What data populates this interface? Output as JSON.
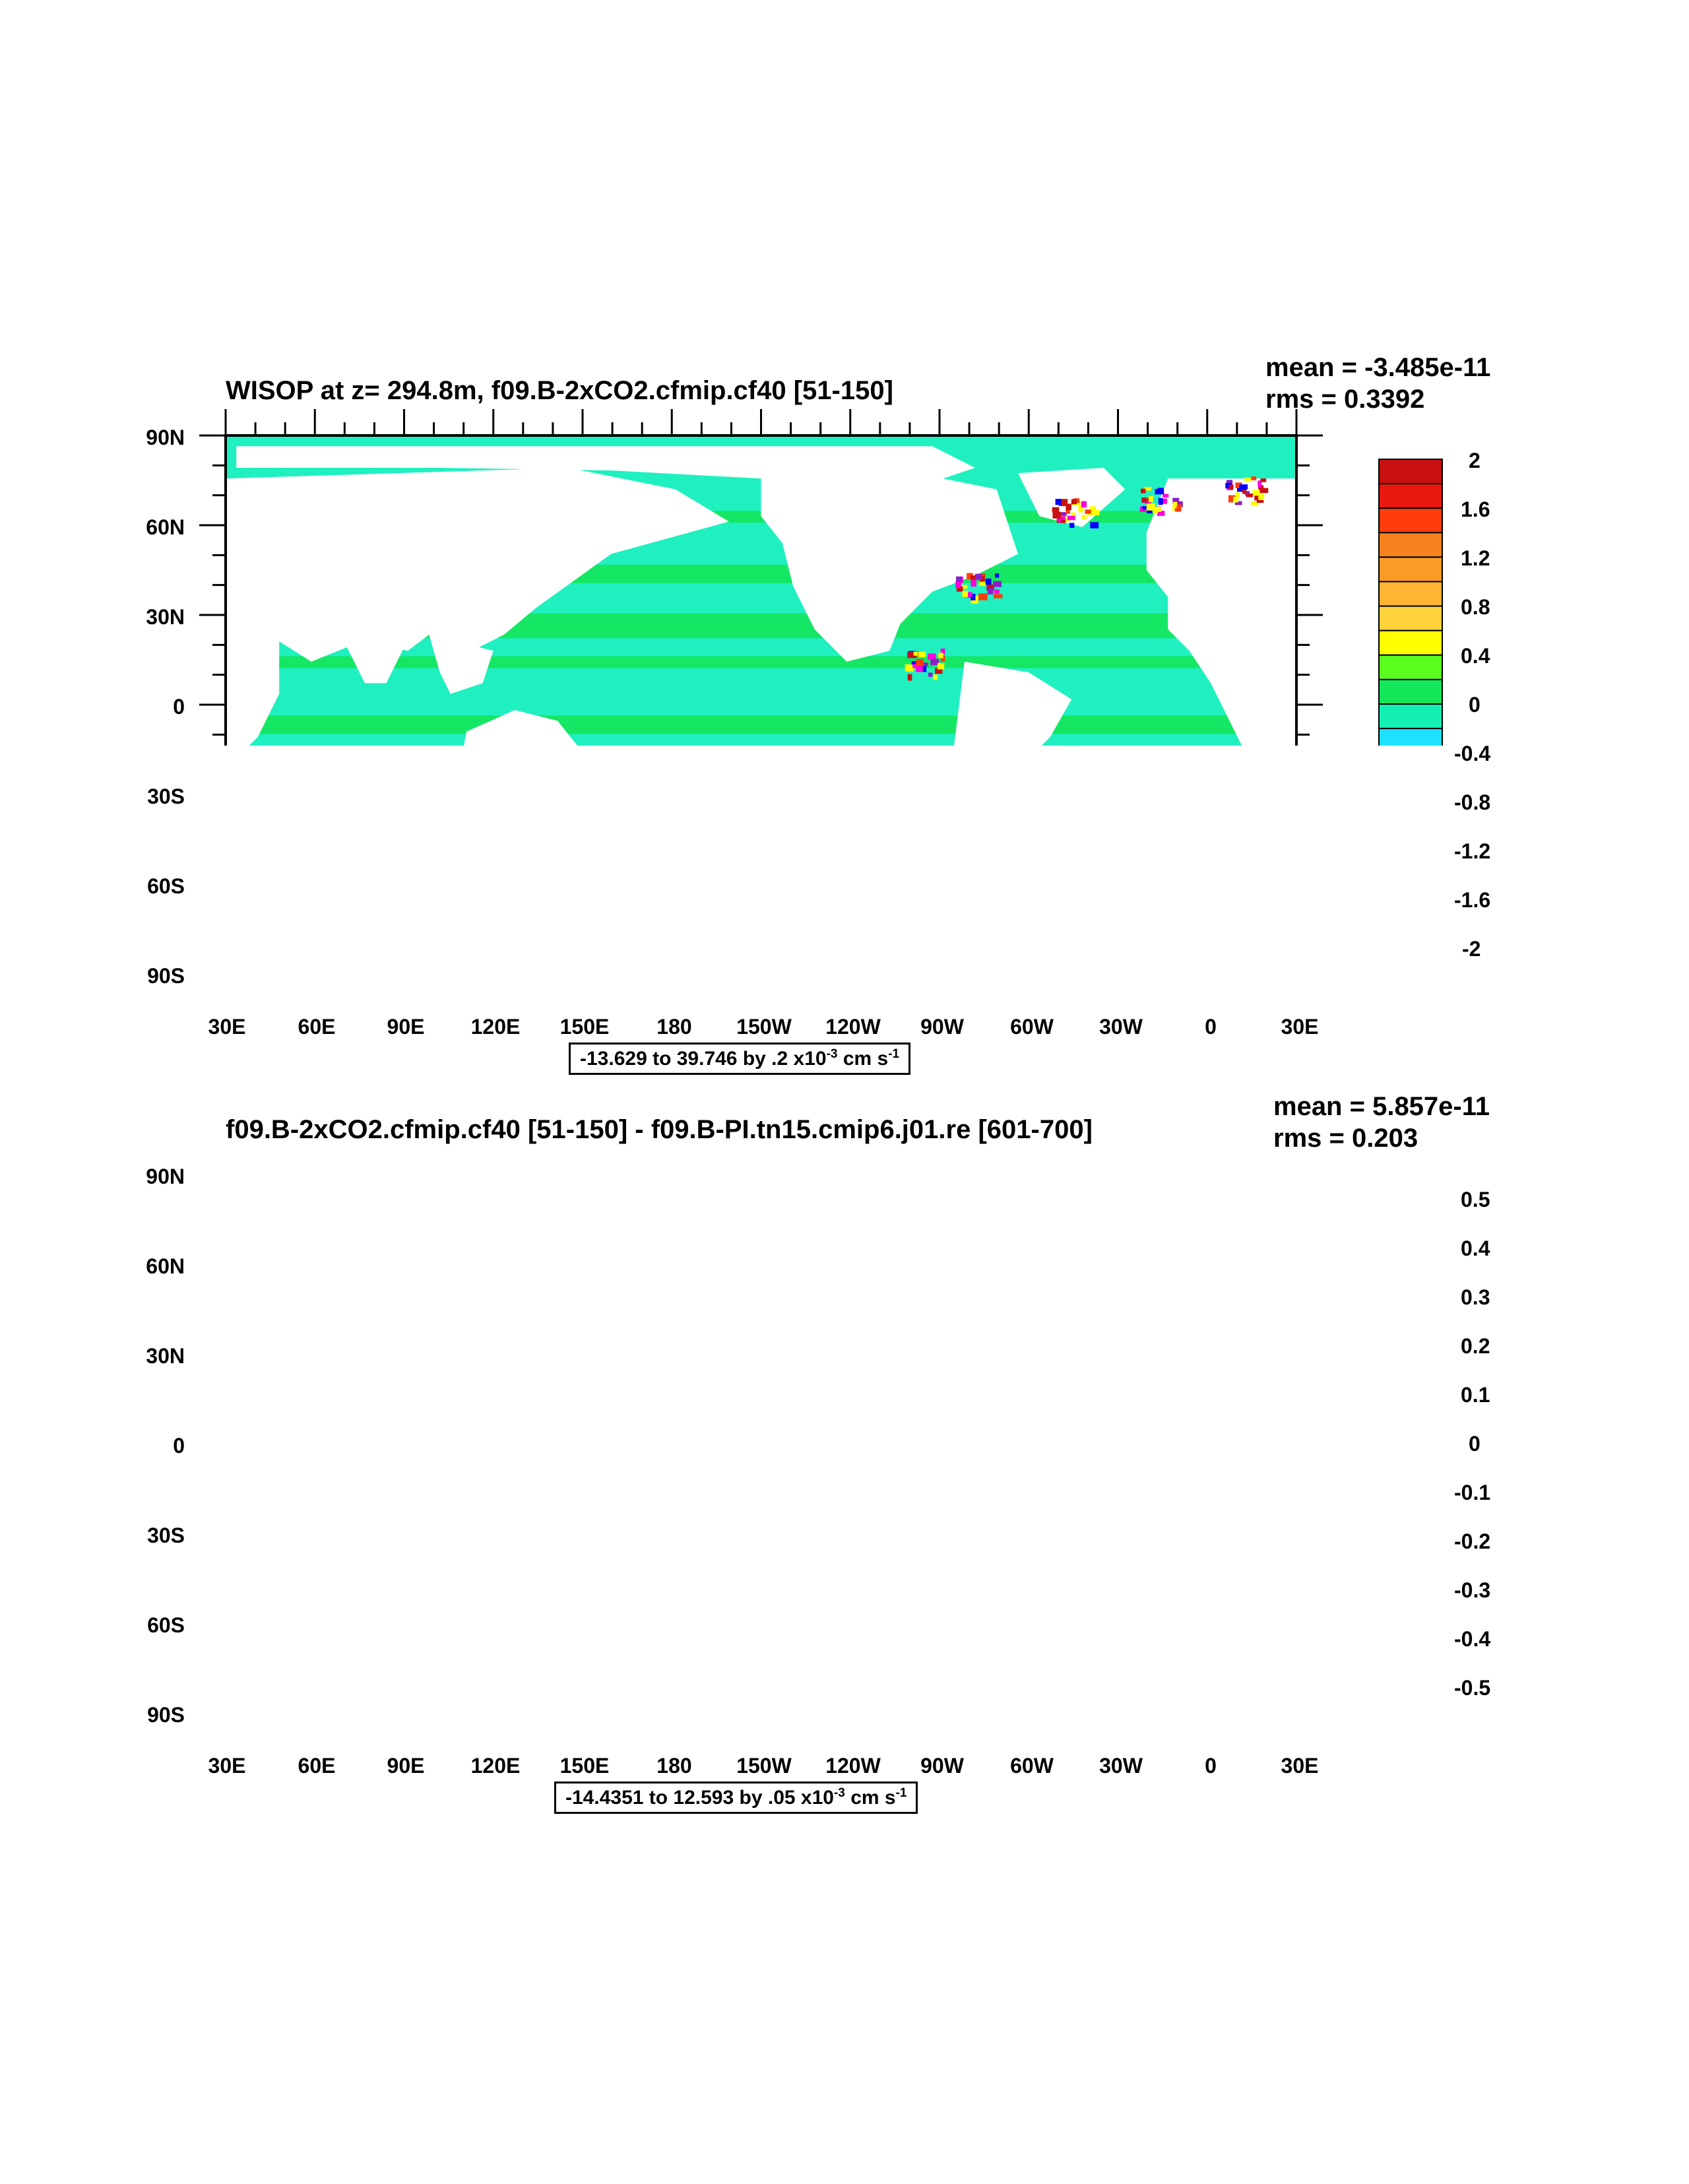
{
  "panels": [
    {
      "title": "WISOP at z= 294.8m, f09.B-2xCO2.cfmip.cf40 [51-150]",
      "mean": "mean = -3.485e-11",
      "rms": "rms = 0.3392",
      "info": {
        "range": "-13.629 to 39.746 by .2 x10",
        "exp": "-3",
        "unit": " cm s",
        "unit_exp": "-1"
      },
      "colorbar_labels": [
        "2",
        "1.6",
        "1.2",
        "0.8",
        "0.4",
        "0",
        "-0.4",
        "-0.8",
        "-1.2",
        "-1.6",
        "-2"
      ]
    },
    {
      "title": "f09.B-2xCO2.cfmip.cf40 [51-150] - f09.B-PI.tn15.cmip6.j01.re [601-700]",
      "mean": "mean = 5.857e-11",
      "rms": "rms = 0.203",
      "info": {
        "range": "-14.4351 to 12.593 by .05 x10",
        "exp": "-3",
        "unit": " cm s",
        "unit_exp": "-1"
      },
      "colorbar_labels": [
        "0.5",
        "0.4",
        "0.3",
        "0.2",
        "0.1",
        "0",
        "-0.1",
        "-0.2",
        "-0.3",
        "-0.4",
        "-0.5"
      ]
    }
  ],
  "lat_labels": [
    "90N",
    "60N",
    "30N",
    "0",
    "30S",
    "60S",
    "90S"
  ],
  "lon_labels": [
    "30E",
    "60E",
    "90E",
    "120E",
    "150E",
    "180",
    "150W",
    "120W",
    "90W",
    "60W",
    "30W",
    "0",
    "30E"
  ],
  "colors": {
    "palette_top_to_bottom": [
      "#c81010",
      "#e81a10",
      "#ff3c0c",
      "#f5821e",
      "#fa9b28",
      "#ffb432",
      "#ffd23c",
      "#ffff00",
      "#5aff1e",
      "#14e65a",
      "#14f0b4",
      "#1ee1ff",
      "#00b4ff",
      "#0a78e6",
      "#0000ff",
      "#8c1ec8",
      "#ff00dc",
      "#c8c8c8",
      "#6e6e6e"
    ],
    "ocean_main": "#20f0c0",
    "ocean_band": "#14e65a"
  }
}
